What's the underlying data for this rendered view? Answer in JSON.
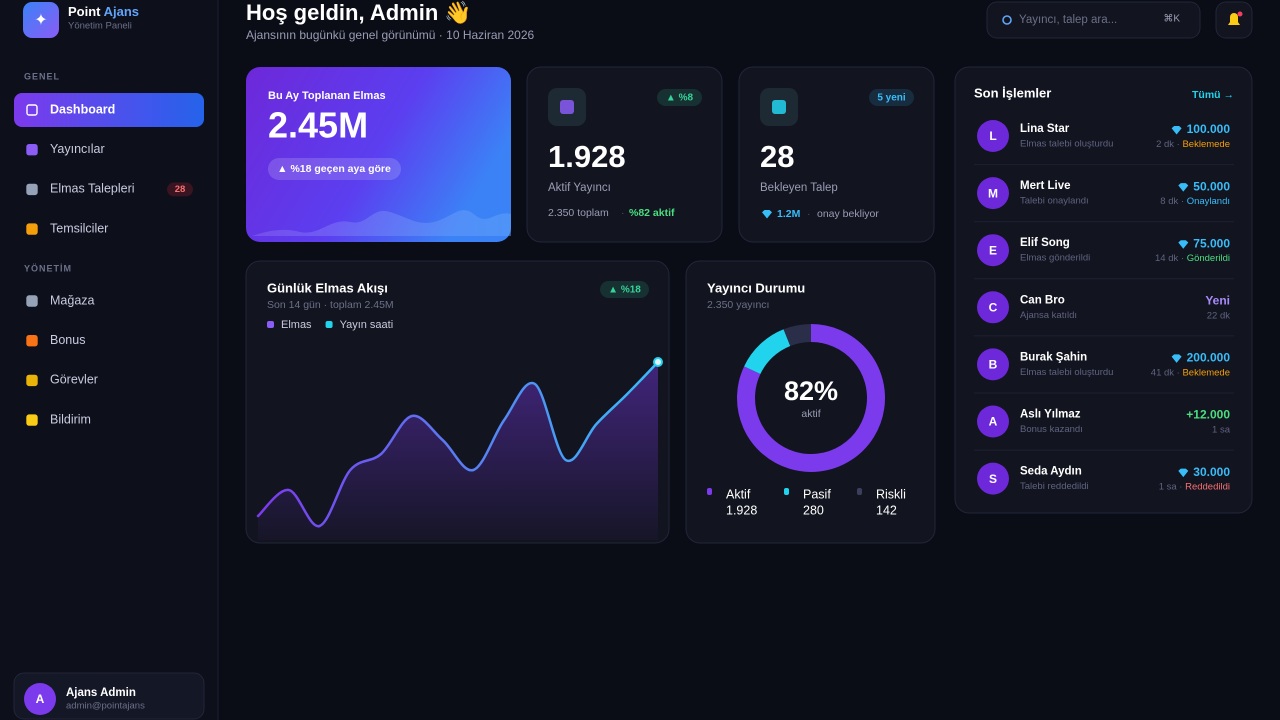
{
  "sidebar": {
    "brand": {
      "name": "Point",
      "accent": "Ajans",
      "subtitle": "Yönetim Paneli"
    },
    "sections": [
      {
        "label": "GENEL",
        "items": [
          {
            "label": "Dashboard",
            "active": true,
            "icon_color": "#ffffff"
          },
          {
            "label": "Yayıncılar",
            "icon_color": "#8b5cf6"
          },
          {
            "label": "Elmas Talepleri",
            "badge": "28",
            "icon_color": "#94a3b8"
          },
          {
            "label": "Temsilciler",
            "icon_color": "#f59e0b"
          }
        ]
      },
      {
        "label": "YÖNETİM",
        "items": [
          {
            "label": "Mağaza",
            "icon_color": "#94a3b8"
          },
          {
            "label": "Bonus",
            "icon_color": "#f97316"
          },
          {
            "label": "Görevler",
            "icon_color": "#eab308"
          },
          {
            "label": "Bildirim",
            "icon_color": "#facc15"
          }
        ]
      }
    ],
    "user": {
      "initial": "A",
      "name": "Ajans Admin",
      "email": "admin@pointajans"
    }
  },
  "header": {
    "title": "Hoş geldin, Admin 👋",
    "subtitle": "Ajansının bugünkü genel görünümü · 10 Haziran 2026",
    "search_placeholder": "Yayıncı, talep ara...",
    "shortcut": "⌘K"
  },
  "hero": {
    "label": "Bu Ay Toplanan Elmas",
    "value": "2.45M",
    "change": "▲ %18 geçen aya göre"
  },
  "stats": [
    {
      "badge": "▲ %8",
      "badge_color": "#34d399",
      "value": "1.928",
      "label": "Aktif Yayıncı",
      "foot": "2.350 toplam",
      "foot_accent": "%82 aktif",
      "icon_color": "#8b5cf6"
    },
    {
      "badge": "5 yeni",
      "badge_color": "#38bdf8",
      "value": "28",
      "label": "Bekleyen Talep",
      "foot": "1.2M",
      "foot_accent": "onay bekliyor",
      "icon_color": "#22d3ee"
    }
  ],
  "chart_data": [
    {
      "type": "line",
      "title": "Günlük Elmas Akışı",
      "subtitle": "Son 14 gün · toplam 2.45M",
      "badge": "▲ %18",
      "legend": [
        {
          "name": "Elmas",
          "color": "#8b5cf6"
        },
        {
          "name": "Yayın saati",
          "color": "#22d3ee"
        }
      ],
      "values": [
        12,
        25,
        7,
        35,
        43,
        62,
        50,
        35,
        60,
        78,
        40,
        58,
        73,
        89
      ],
      "ylim": [
        0,
        100
      ]
    },
    {
      "type": "pie",
      "title": "Yayıncı Durumu",
      "subtitle": "2.350 yayıncı",
      "categories": [
        "Aktif",
        "Pasif",
        "Riskli"
      ],
      "values": [
        1928,
        280,
        142
      ],
      "value_labels": [
        "1.928",
        "280",
        "142"
      ],
      "colors": [
        "#7c3aed",
        "#22d3ee",
        "#2b2e48"
      ],
      "center_label": "82%",
      "center_sublabel": "aktif"
    }
  ],
  "recent": {
    "title": "Son İşlemler",
    "link": "Tümü →",
    "rows": [
      {
        "initial": "L",
        "name": "Lina Star",
        "desc": "Elmas talebi oluşturdu",
        "amount": "100.000",
        "diamond": true,
        "amount_color": "#38bdf8",
        "time": "2 dk · ",
        "status": "Beklemede",
        "status_color": "#f59e0b"
      },
      {
        "initial": "M",
        "name": "Mert Live",
        "desc": "Talebi onaylandı",
        "amount": "50.000",
        "diamond": true,
        "amount_color": "#38bdf8",
        "time": "8 dk · ",
        "status": "Onaylandı",
        "status_color": "#38bdf8"
      },
      {
        "initial": "E",
        "name": "Elif Song",
        "desc": "Elmas gönderildi",
        "amount": "75.000",
        "diamond": true,
        "amount_color": "#38bdf8",
        "time": "14 dk · ",
        "status": "Gönderildi",
        "status_color": "#4ade80"
      },
      {
        "initial": "C",
        "name": "Can Bro",
        "desc": "Ajansa katıldı",
        "amount": "Yeni",
        "diamond": false,
        "amount_color": "#a78bfa",
        "time": "22 dk"
      },
      {
        "initial": "B",
        "name": "Burak Şahin",
        "desc": "Elmas talebi oluşturdu",
        "amount": "200.000",
        "diamond": true,
        "amount_color": "#38bdf8",
        "time": "41 dk · ",
        "status": "Beklemede",
        "status_color": "#f59e0b"
      },
      {
        "initial": "A",
        "name": "Aslı Yılmaz",
        "desc": "Bonus kazandı",
        "amount": "+12.000",
        "diamond": false,
        "amount_color": "#4ade80",
        "time": "1 sa"
      },
      {
        "initial": "S",
        "name": "Seda Aydın",
        "desc": "Talebi reddedildi",
        "amount": "30.000",
        "diamond": true,
        "amount_color": "#38bdf8",
        "time": "1 sa · ",
        "status": "Reddedildi",
        "status_color": "#f87171"
      }
    ]
  }
}
